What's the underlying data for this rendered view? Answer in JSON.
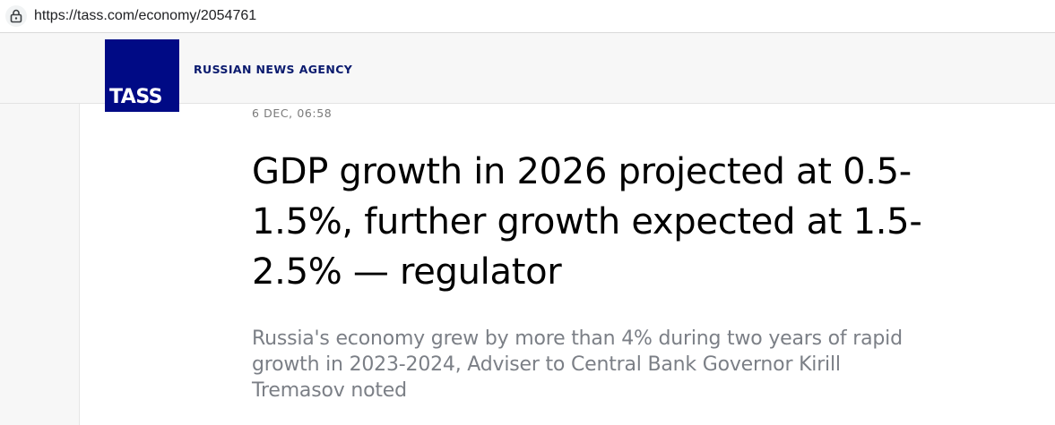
{
  "browser": {
    "url": "https://tass.com/economy/2054761",
    "lock_icon": "lock-icon"
  },
  "header": {
    "logo_text": "TASS",
    "agency_name": "RUSSIAN NEWS AGENCY",
    "brand_color": "#000a85"
  },
  "article": {
    "dateline": "6 DEC, 06:58",
    "title": "GDP growth in 2026 projected at 0.5-1.5%, further growth expected at 1.5-2.5% — regulator",
    "lead": "Russia's economy grew by more than 4% during two years of rapid growth in 2023-2024, Adviser to Central Bank Governor Kirill Tremasov noted"
  }
}
